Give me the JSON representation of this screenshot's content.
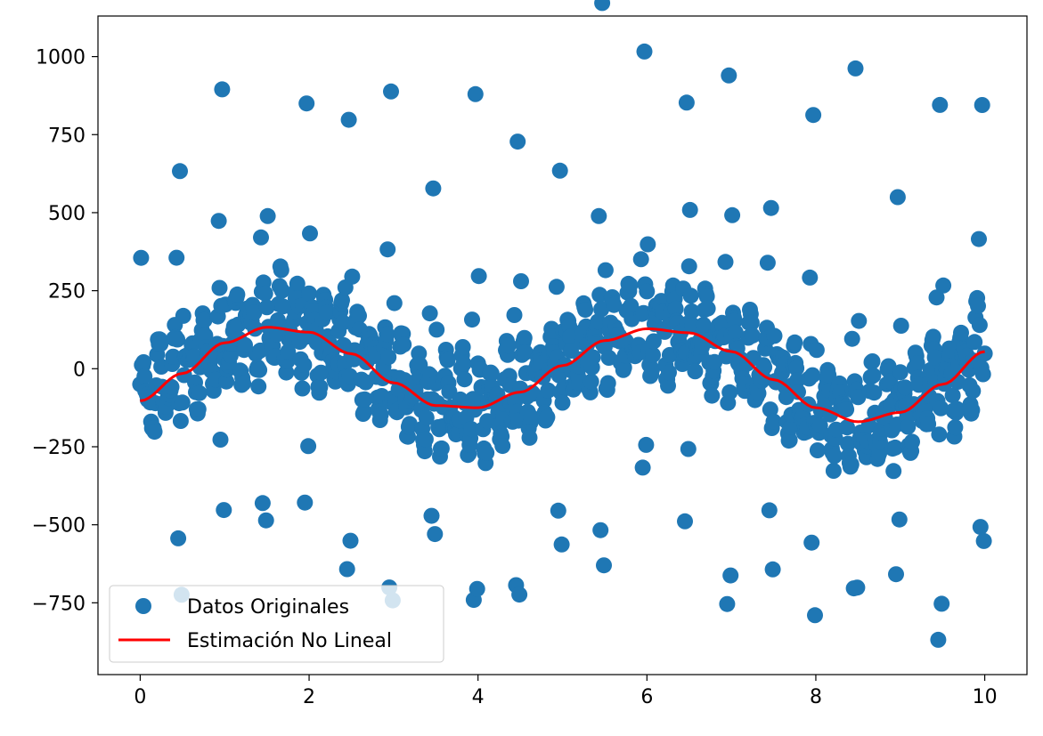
{
  "chart_data": {
    "type": "scatter",
    "title": "",
    "xlabel": "",
    "ylabel": "",
    "xlim": [
      -0.5,
      10.5
    ],
    "ylim": [
      -980,
      1130
    ],
    "grid": false,
    "legend_position": "lower-left",
    "x_ticks": [
      "0",
      "2",
      "4",
      "6",
      "8",
      "10"
    ],
    "x_tick_values": [
      0,
      2,
      4,
      6,
      8,
      10
    ],
    "y_ticks": [
      "−750",
      "−500",
      "−250",
      "0",
      "250",
      "500",
      "750",
      "1000"
    ],
    "y_tick_values": [
      -750,
      -500,
      -250,
      0,
      250,
      500,
      750,
      1000
    ],
    "scatter_series": {
      "name": "Datos Originales",
      "color": "#1f77b4",
      "sample_count": 1000,
      "x_range": [
        0,
        10
      ],
      "burst_period": 0.5,
      "burst_amplitude_range": [
        650,
        1040
      ]
    },
    "fit_series": {
      "name": "Estimación No Lineal",
      "color": "#ff0000",
      "x": [
        0,
        0.5,
        1.0,
        1.5,
        2.0,
        2.5,
        3.0,
        3.5,
        4.0,
        4.5,
        5.0,
        5.5,
        6.0,
        6.5,
        7.0,
        7.5,
        8.0,
        8.5,
        9.0,
        9.5,
        10.0
      ],
      "y": [
        -103,
        -15,
        83,
        133,
        117,
        48,
        -45,
        -118,
        -125,
        -75,
        10,
        90,
        128,
        115,
        55,
        -35,
        -125,
        -170,
        -140,
        -50,
        55
      ]
    }
  }
}
